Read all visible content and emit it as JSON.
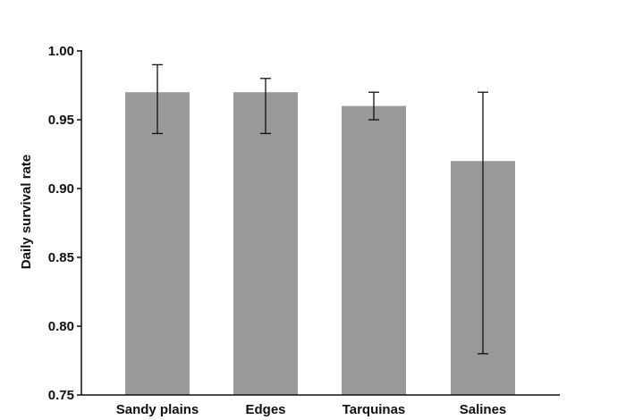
{
  "chart_data": {
    "type": "bar",
    "categories": [
      "Sandy plains",
      "Edges",
      "Tarquinas",
      "Salines"
    ],
    "series": [
      {
        "values": [
          0.97,
          0.97,
          0.96,
          0.92
        ],
        "error_low": [
          0.94,
          0.94,
          0.95,
          0.78
        ],
        "error_high": [
          0.99,
          0.98,
          0.97,
          0.97
        ]
      }
    ],
    "ylabel": "Daily survival rate",
    "xlabel": "",
    "ylim": [
      0.75,
      1.0
    ],
    "yticks": [
      0.75,
      0.8,
      0.85,
      0.9,
      0.95,
      1.0
    ],
    "ytick_labels": [
      "0.75",
      "0.80",
      "0.85",
      "0.90",
      "0.95",
      "1.00"
    ],
    "grid": false,
    "colors": {
      "bar": "#999999",
      "axis": "#111111",
      "error_bar": "#111111"
    }
  }
}
